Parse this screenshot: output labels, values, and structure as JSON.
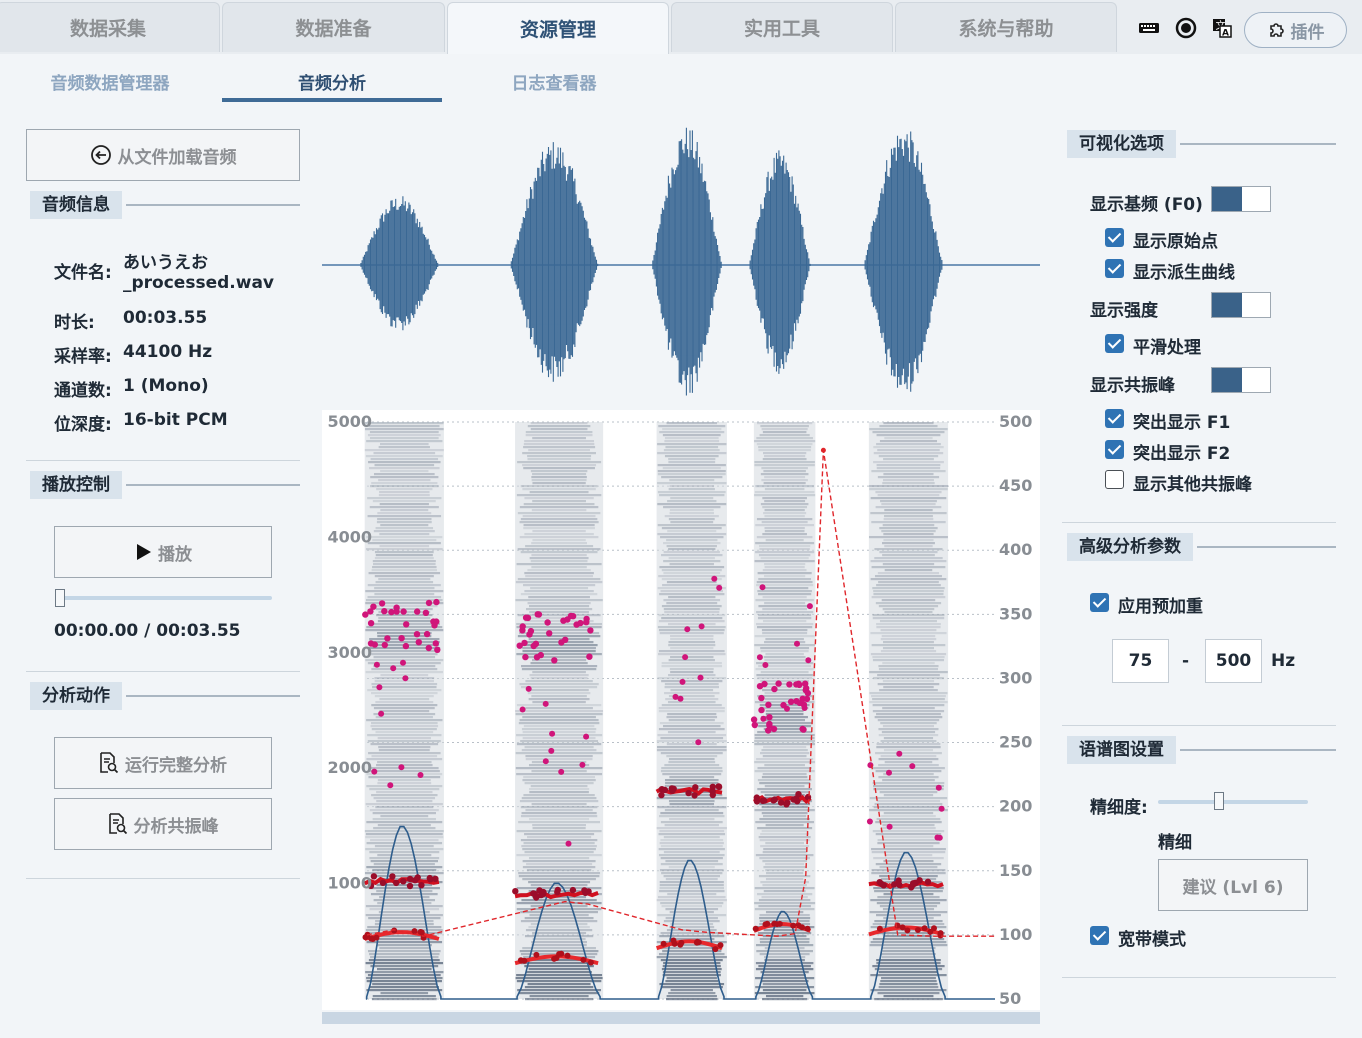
{
  "tabs": [
    {
      "label": "数据采集",
      "active": false
    },
    {
      "label": "数据准备",
      "active": false
    },
    {
      "label": "资源管理",
      "active": true
    },
    {
      "label": "实用工具",
      "active": false
    },
    {
      "label": "系统与帮助",
      "active": false
    }
  ],
  "top_icons": [
    "keyboard-icon",
    "record-icon",
    "translate-icon"
  ],
  "plugin_button": {
    "label": "插件",
    "icon": "puzzle-icon"
  },
  "subtabs": [
    {
      "label": "音频数据管理器",
      "active": false
    },
    {
      "label": "音频分析",
      "active": true
    },
    {
      "label": "日志查看器",
      "active": false
    }
  ],
  "left": {
    "load_button": {
      "label": "从文件加载音频",
      "icon": "load-icon"
    },
    "audio_info": {
      "title": "音频信息",
      "filename_label": "文件名:",
      "filename_line1": "あいうえお",
      "filename_line2": "_processed.wav",
      "duration_label": "时长:",
      "duration": "00:03.55",
      "samplerate_label": "采样率:",
      "samplerate": "44100 Hz",
      "channels_label": "通道数:",
      "channels": "1 (Mono)",
      "bitdepth_label": "位深度:",
      "bitdepth": "16-bit PCM"
    },
    "playback": {
      "title": "播放控制",
      "play_label": "播放",
      "position_fraction": 0.0,
      "time": "00:00.00 / 00:03.55"
    },
    "analysis": {
      "title": "分析动作",
      "full_label": "运行完整分析",
      "formant_label": "分析共振峰"
    }
  },
  "right": {
    "vis": {
      "title": "可视化选项",
      "show_f0": "显示基频 (F0)",
      "show_f0_on": true,
      "show_raw": "显示原始点",
      "show_raw_checked": true,
      "show_derived": "显示派生曲线",
      "show_derived_checked": true,
      "show_intensity": "显示强度",
      "show_intensity_on": true,
      "smooth": "平滑处理",
      "smooth_checked": true,
      "show_formants": "显示共振峰",
      "show_formants_on": true,
      "f1": "突出显示 F1",
      "f1_checked": true,
      "f2": "突出显示 F2",
      "f2_checked": true,
      "other": "显示其他共振峰",
      "other_checked": false
    },
    "advanced": {
      "title": "高级分析参数",
      "preemph": "应用预加重",
      "preemph_checked": true,
      "min": "75",
      "dash": "-",
      "max": "500",
      "unit": "Hz"
    },
    "spec": {
      "title": "语谱图设置",
      "detail_label": "精细度:",
      "detail_fraction": 0.4,
      "detail_value": "精细",
      "suggest_label": "建议 (Lvl 6)",
      "wideband": "宽带模式",
      "wideband_checked": true
    }
  },
  "chart_data": {
    "type": "spectrogram",
    "duration_s": 3.55,
    "left_axis": {
      "ticks": [
        "1000",
        "2000",
        "3000",
        "4000",
        "5000"
      ],
      "range": [
        0,
        5000
      ]
    },
    "right_axis": {
      "ticks": [
        "50",
        "100",
        "150",
        "200",
        "250",
        "300",
        "350",
        "400",
        "450",
        "500"
      ],
      "range": [
        50,
        500
      ]
    },
    "segments": [
      {
        "t0": 0.1,
        "t1": 0.35,
        "f1": 520,
        "f2": 1020,
        "f3": 3150,
        "f0": 100
      },
      {
        "t0": 0.95,
        "t1": 1.25,
        "f1": 310,
        "f2": 900,
        "f3": 3050,
        "f0": 124
      },
      {
        "t0": 1.75,
        "t1": 1.95,
        "f1": 440,
        "f2": 1800,
        "f3": 0,
        "f0": 100
      },
      {
        "t0": 2.3,
        "t1": 2.45,
        "f1": 590,
        "f2": 1730,
        "f3": 2450,
        "f0": 98
      },
      {
        "t0": 2.95,
        "t1": 3.2,
        "f1": 560,
        "f2": 990,
        "f3": 0,
        "f0": 100
      }
    ],
    "f0_contour": [
      [
        0,
        100
      ],
      [
        0.15,
        104
      ],
      [
        0.32,
        99
      ],
      [
        1.0,
        122
      ],
      [
        1.12,
        126
      ],
      [
        1.25,
        124
      ],
      [
        1.78,
        104
      ],
      [
        1.92,
        102
      ],
      [
        2.32,
        99
      ],
      [
        2.42,
        101
      ],
      [
        2.48,
        145
      ],
      [
        2.58,
        478
      ],
      [
        3.0,
        100
      ],
      [
        3.2,
        99
      ],
      [
        3.55,
        99
      ]
    ]
  }
}
